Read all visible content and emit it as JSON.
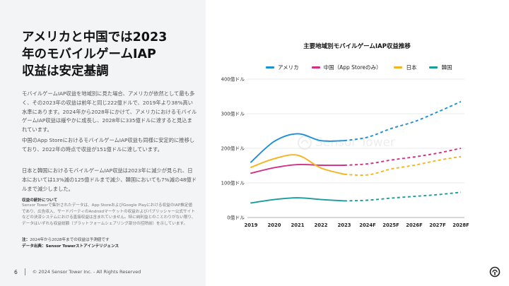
{
  "title_lines": [
    "アメリカと中国では2023",
    "年のモバイルゲームIAP",
    "収益は安定基調"
  ],
  "paragraphs": [
    "モバイルゲームIAP収益を地域別に見た場合、アメリカが依然として最も多く、その2023年の収益は前年と同じ222億ドルで、2019年より38%高い水準にあります。2024年から2028年にかけて、アメリカにおけるモバイルゲームIAP収益は緩やかに成長し、2028年に335億ドルに達すると見込まれています。",
    "中国のApp StoreにおけるモバイルゲームIAP収益も同様に安定的に推移しており、2022年の時点で収益が151億ドルに達しています。",
    "日本と韓国におけるモバイルゲームIAP収益は2023年に減少が見られ、日本においては13%減の125億ドルまで減少、韓国においても7%減の48億ドルまで減少しました。"
  ],
  "notes": {
    "title": "収益の統計について",
    "body": "Sensor Towerで集計されたデータは、App StoreおよびGoogle Playにおける収益のIAP推定値であり、広告収入、サードパーティのAndroidマーケットの収益およびパブリッシャー公式サイトなどの決済システムにおける直接収益は含まれていません。特に純利益とのことわりがない限り、データはいずれも収益総額（プラットフォームシェアリング部分の控除前）を示しています。",
    "note_label": "注：",
    "note_text": "2024年から2028年までの収益は予測値です",
    "source_label": "データ出典：",
    "source_text": "Sensor Towerストアインテリジェンス"
  },
  "footer": {
    "page": "6",
    "copyright": "© 2024 Sensor Tower Inc. - All Rights Reserved"
  },
  "watermark": "Sensor Tower",
  "icons": {
    "logo": "sensor-tower-logo-icon"
  },
  "chart_data": {
    "type": "line",
    "title": "主要地域別モバイルゲームIAP収益推移",
    "categories": [
      "2019",
      "2020",
      "2021",
      "2022",
      "2023",
      "2024F",
      "2025F",
      "2026F",
      "2027F",
      "2028F"
    ],
    "forecast_start_index": 4,
    "y_ticks": [
      "0億ドル",
      "100億ドル",
      "200億ドル",
      "300億ドル",
      "400億ドル"
    ],
    "y_tick_values": [
      0,
      100,
      200,
      300,
      400
    ],
    "ylim": [
      0,
      400
    ],
    "xlabel": "",
    "ylabel": "",
    "series": [
      {
        "name": "アメリカ",
        "color": "#1c8fd8",
        "values": [
          160,
          220,
          242,
          222,
          222,
          232,
          257,
          277,
          305,
          335
        ]
      },
      {
        "name": "中国（App Storeのみ）",
        "color": "#d42f86",
        "values": [
          128,
          144,
          153,
          151,
          151,
          155,
          166,
          175,
          186,
          200
        ]
      },
      {
        "name": "日本",
        "color": "#f5b31d",
        "values": [
          145,
          170,
          180,
          143,
          125,
          123,
          140,
          151,
          165,
          176
        ]
      },
      {
        "name": "韓国",
        "color": "#1a9b9c",
        "values": [
          42,
          52,
          57,
          52,
          48,
          50,
          56,
          61,
          66,
          73
        ]
      }
    ]
  }
}
